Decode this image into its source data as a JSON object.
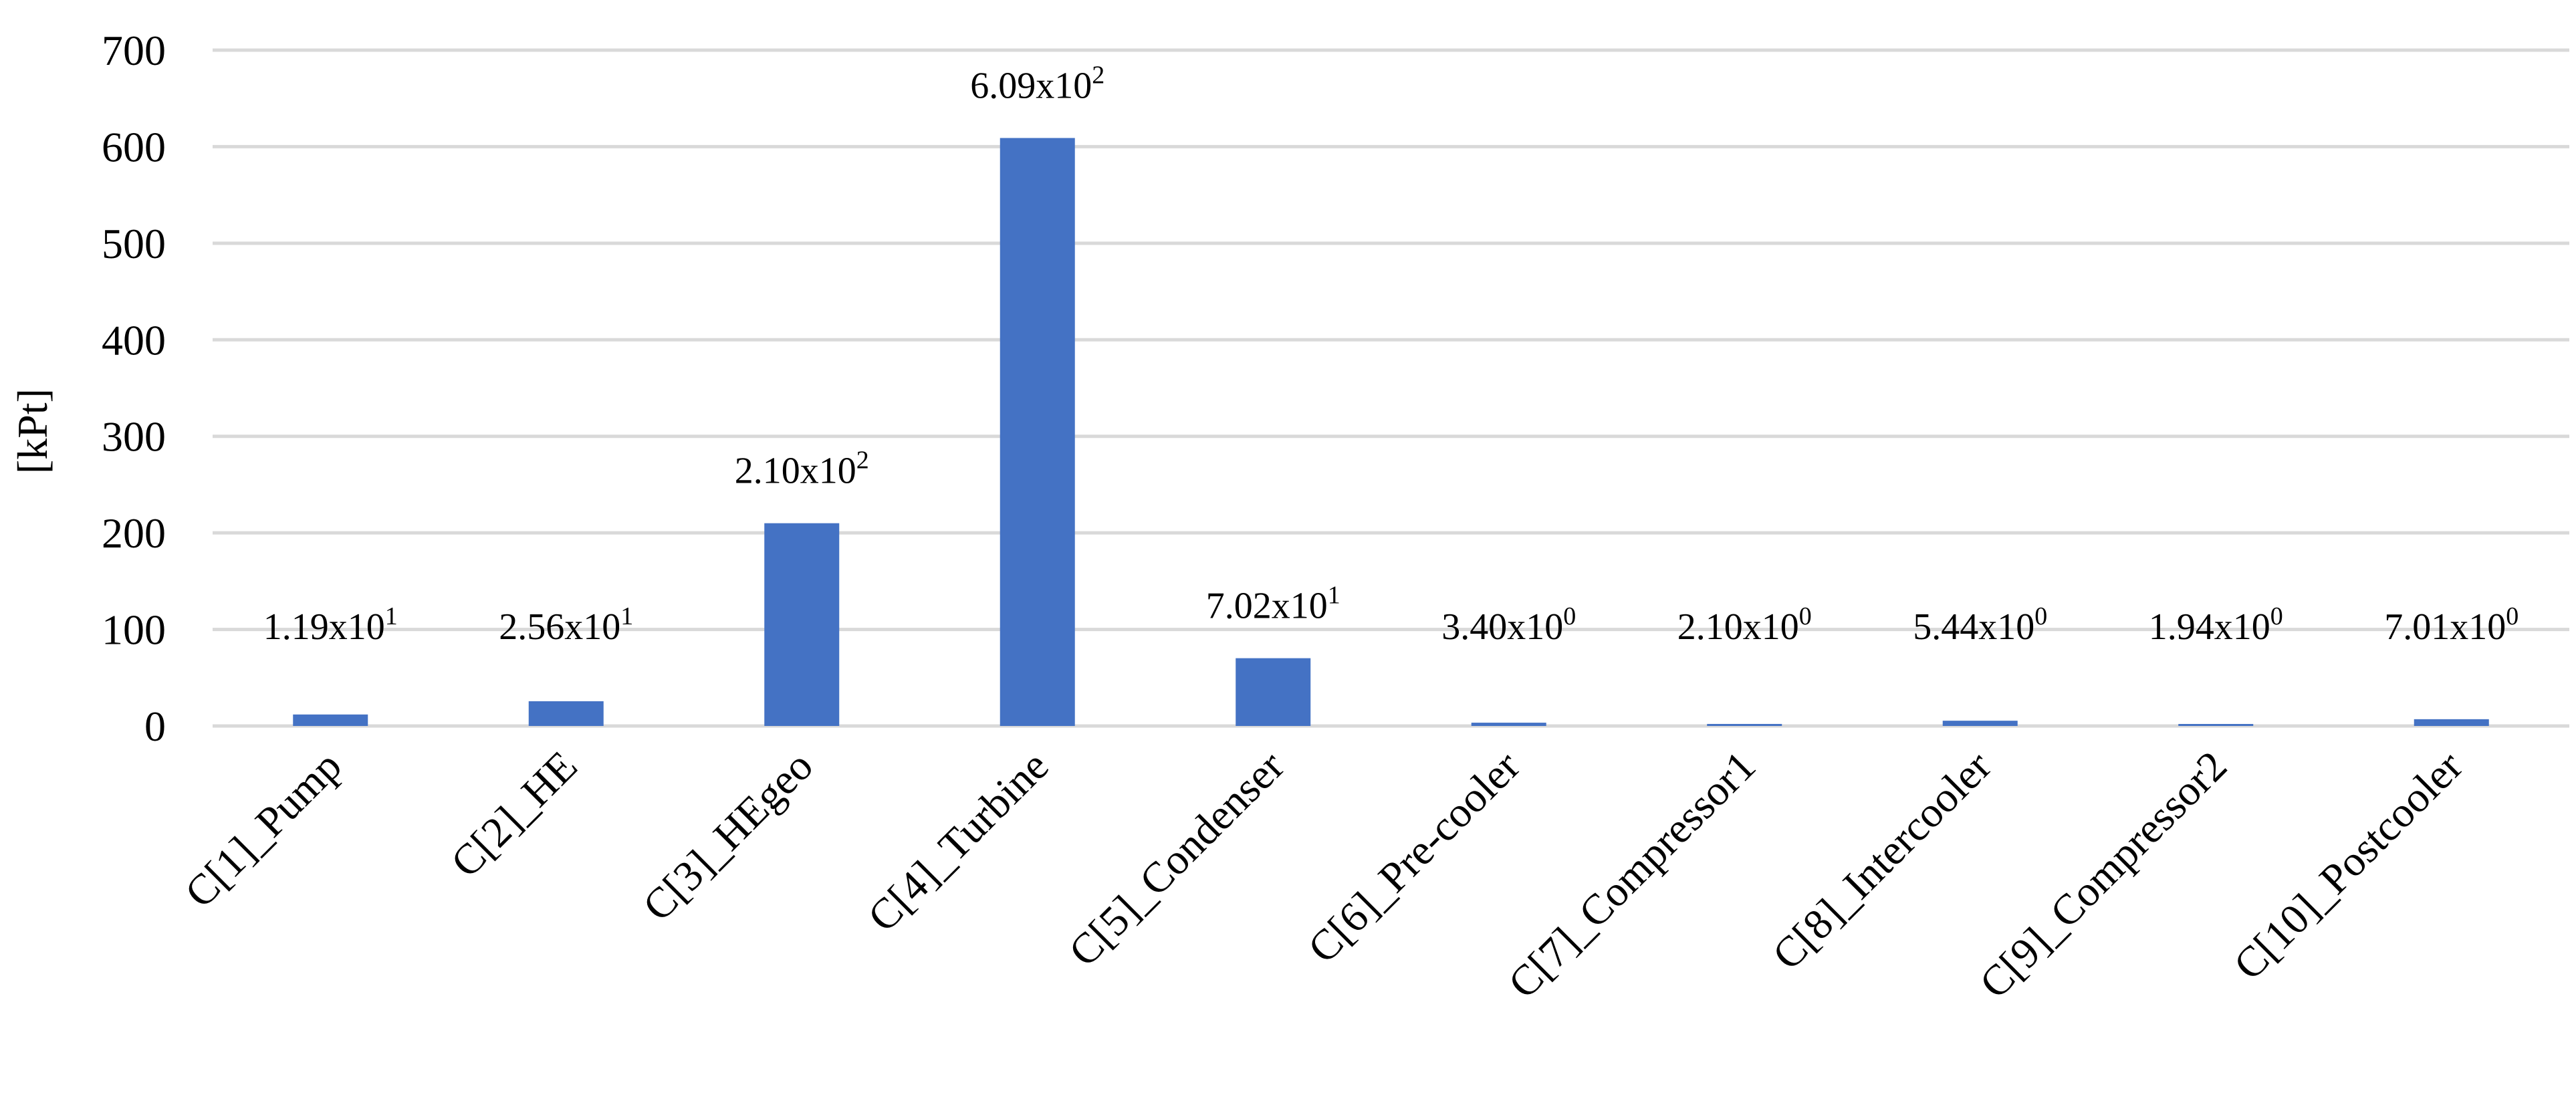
{
  "chart_data": {
    "type": "bar",
    "title": "",
    "xlabel": "",
    "ylabel": "[kPt]",
    "ylim": [
      0,
      700
    ],
    "yticks": [
      "0",
      "100",
      "200",
      "300",
      "400",
      "500",
      "600",
      "700"
    ],
    "grid": true,
    "legend": "none",
    "categories": [
      "C[1]_Pump",
      "C[2]_HE",
      "C[3]_HEgeo",
      "C[4]_Turbine",
      "C[5]_Condenser",
      "C[6]_Pre-cooler",
      "C[7]_Compressor1",
      "C[8]_Intercooler",
      "C[9]_Compressor2",
      "C[10]_Postcooler"
    ],
    "values": [
      11.9,
      25.6,
      210,
      609,
      70.2,
      3.4,
      2.1,
      5.44,
      1.94,
      7.01
    ],
    "data_labels": [
      {
        "mantissa": "1.19x10",
        "exponent": "1"
      },
      {
        "mantissa": "2.56x10",
        "exponent": "1"
      },
      {
        "mantissa": "2.10x10",
        "exponent": "2"
      },
      {
        "mantissa": "6.09x10",
        "exponent": "2"
      },
      {
        "mantissa": "7.02x10",
        "exponent": "1"
      },
      {
        "mantissa": "3.40x10",
        "exponent": "0"
      },
      {
        "mantissa": "2.10x10",
        "exponent": "0"
      },
      {
        "mantissa": "5.44x10",
        "exponent": "0"
      },
      {
        "mantissa": "1.94x10",
        "exponent": "0"
      },
      {
        "mantissa": "7.01x10",
        "exponent": "0"
      }
    ],
    "colors": {
      "bar": "#4472C4",
      "grid": "#D9D9D9",
      "text": "#000000"
    }
  }
}
